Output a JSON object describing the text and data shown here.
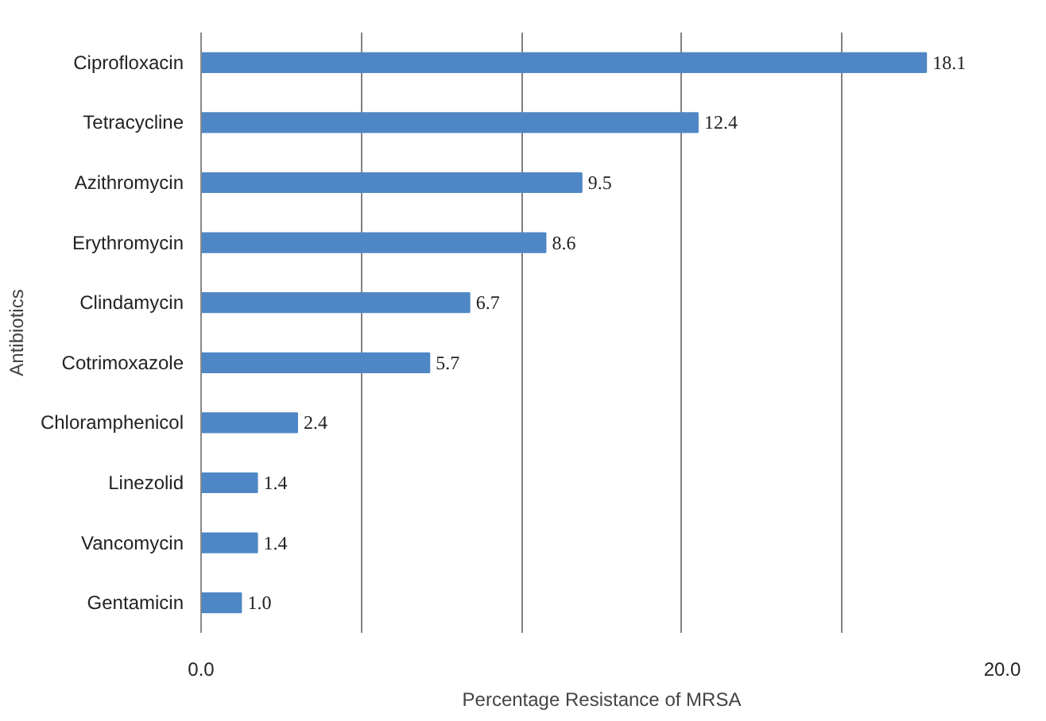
{
  "chart_data": {
    "type": "bar",
    "orientation": "horizontal",
    "xlabel": "Percentage Resistance of MRSA",
    "ylabel": "Antibiotics",
    "categories": [
      "Ciprofloxacin",
      "Tetracycline",
      "Azithromycin",
      "Erythromycin",
      "Clindamycin",
      "Cotrimoxazole",
      "Chloramphenicol",
      "Linezolid",
      "Vancomycin",
      "Gentamicin"
    ],
    "values": [
      18.1,
      12.4,
      9.5,
      8.6,
      6.7,
      5.7,
      2.4,
      1.4,
      1.4,
      1.0
    ],
    "value_labels": [
      "18.1",
      "12.4",
      "9.5",
      "8.6",
      "6.7",
      "5.7",
      "2.4",
      "1.4",
      "1.4",
      "1.0"
    ],
    "color": "#4f87c6",
    "xlim": [
      0,
      20
    ],
    "xticks": [
      {
        "value": 0,
        "label": "0.0"
      },
      {
        "value": 4,
        "label": null
      },
      {
        "value": 8,
        "label": null
      },
      {
        "value": 12,
        "label": null
      },
      {
        "value": 16,
        "label": null
      },
      {
        "value": 20,
        "label": "20.0"
      }
    ],
    "grid": "x"
  }
}
